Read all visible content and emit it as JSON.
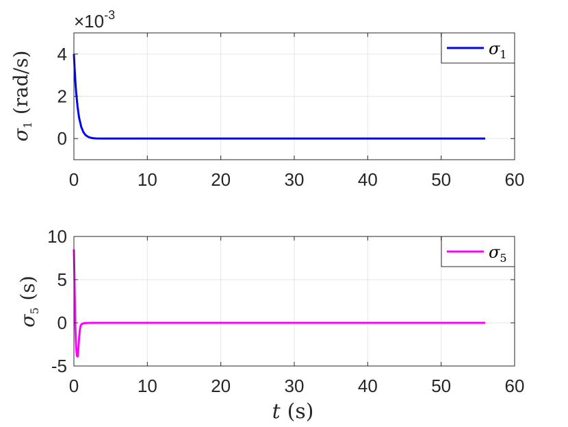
{
  "chart_data": [
    {
      "type": "line",
      "ylabel": "σ1 (rad/s)",
      "ylabel_symbol": "σ",
      "ylabel_sub": "1",
      "ylabel_unit": "(rad/s)",
      "xlim": [
        0,
        60
      ],
      "ylim": [
        -0.001,
        0.005
      ],
      "x_ticks": [
        "0",
        "10",
        "20",
        "30",
        "40",
        "50",
        "60"
      ],
      "y_ticks": [
        "0",
        "2",
        "4"
      ],
      "y_tick_values": [
        0,
        0.002,
        0.004
      ],
      "exponent_times": "×10",
      "exponent_power": "-3",
      "grid": true,
      "legend_position": "top-right",
      "series": [
        {
          "name": "σ1",
          "name_symbol": "σ",
          "name_sub": "1",
          "color": "#0000ff",
          "x": [
            0,
            0.1,
            0.2,
            0.3,
            0.5,
            0.7,
            1.0,
            1.3,
            1.6,
            2.0,
            2.5,
            3.0,
            4.0,
            6.0,
            10,
            20,
            30,
            40,
            50,
            56
          ],
          "y": [
            0.004,
            0.0033,
            0.0027,
            0.0022,
            0.0015,
            0.001,
            0.00055,
            0.0003,
            0.00016,
            7e-05,
            2e-05,
            5e-06,
            0,
            0,
            0,
            0,
            0,
            0,
            0,
            0
          ]
        }
      ]
    },
    {
      "type": "line",
      "ylabel": "σ5 (s)",
      "ylabel_symbol": "σ",
      "ylabel_sub": "5",
      "ylabel_unit": "(s)",
      "xlabel_symbol": "t",
      "xlabel_unit": "(s)",
      "xlim": [
        0,
        60
      ],
      "ylim": [
        -5,
        10
      ],
      "x_ticks": [
        "0",
        "10",
        "20",
        "30",
        "40",
        "50",
        "60"
      ],
      "y_ticks": [
        "-5",
        "0",
        "5",
        "10"
      ],
      "y_tick_values": [
        -5,
        0,
        5,
        10
      ],
      "grid": true,
      "legend_position": "top-right",
      "series": [
        {
          "name": "σ5",
          "name_symbol": "σ",
          "name_sub": "5",
          "color": "#ff00ff",
          "x": [
            0,
            0.05,
            0.1,
            0.15,
            0.2,
            0.3,
            0.4,
            0.5,
            0.55,
            0.6,
            0.7,
            0.8,
            0.9,
            1.0,
            1.2,
            1.5,
            2.0,
            3.0,
            5.0,
            10,
            20,
            30,
            40,
            50,
            56
          ],
          "y": [
            8.5,
            6.5,
            4.0,
            1.5,
            -0.5,
            -2.8,
            -3.8,
            -3.9,
            -3.7,
            -3.0,
            -1.8,
            -0.9,
            -0.4,
            -0.2,
            -0.08,
            -0.03,
            -0.01,
            0,
            0,
            0,
            0,
            0,
            0,
            0,
            0
          ]
        }
      ]
    }
  ]
}
